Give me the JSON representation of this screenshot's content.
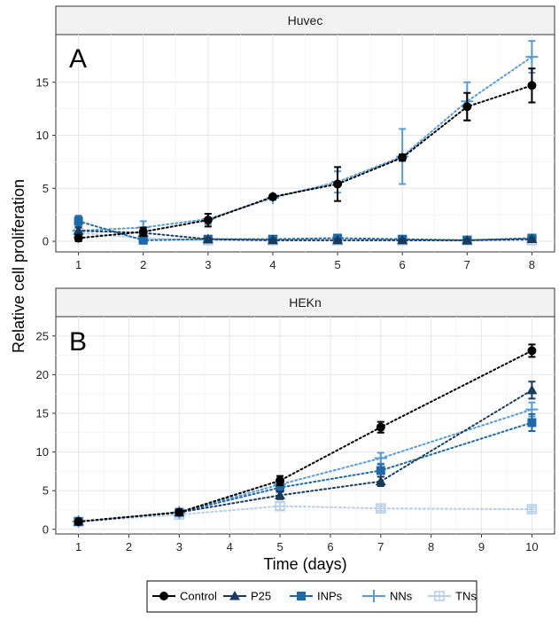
{
  "chart_data": {
    "type": "line",
    "xlabel": "Time (days)",
    "ylabel": "Relative cell proliferation",
    "legend_position": "bottom",
    "grid": true,
    "series_styles": [
      {
        "name": "Control",
        "color": "#000000",
        "marker": "circle"
      },
      {
        "name": "P25",
        "color": "#1a3a5c",
        "marker": "triangle"
      },
      {
        "name": "INPs",
        "color": "#1f6aa5",
        "marker": "square"
      },
      {
        "name": "NNs",
        "color": "#5b9bd5",
        "marker": "cross"
      },
      {
        "name": "TNs",
        "color": "#b8cfe8",
        "marker": "square-cross"
      }
    ],
    "panels": [
      {
        "strip": "Huvec",
        "letter": "A",
        "x": [
          1,
          2,
          3,
          4,
          5,
          6,
          7,
          8
        ],
        "xticks": [
          1,
          2,
          3,
          4,
          5,
          6,
          7,
          8
        ],
        "xlim": [
          0.65,
          8.35
        ],
        "yticks": [
          0,
          5,
          10,
          15
        ],
        "ylim": [
          -1,
          19.5
        ],
        "series": [
          {
            "name": "Control",
            "values": [
              0.3,
              0.9,
              2.0,
              4.2,
              5.4,
              7.9,
              12.7,
              14.7
            ],
            "err": [
              0.3,
              0.4,
              0.6,
              0.2,
              1.6,
              0.3,
              1.3,
              1.6
            ]
          },
          {
            "name": "P25",
            "values": [
              1.0,
              0.8,
              0.2,
              0.1,
              0.1,
              0.1,
              0.1,
              0.2
            ],
            "err": [
              0.3,
              0.2,
              0.1,
              0.1,
              0.1,
              0.1,
              0.1,
              0.1
            ]
          },
          {
            "name": "INPs",
            "values": [
              1.9,
              0.1,
              0.2,
              0.2,
              0.3,
              0.2,
              0.1,
              0.3
            ],
            "err": [
              0.5,
              0.2,
              0.1,
              0.1,
              0.1,
              0.1,
              0.1,
              0.1
            ]
          },
          {
            "name": "NNs",
            "values": [
              1.0,
              1.3,
              2.1,
              4.1,
              5.6,
              8.0,
              13.2,
              17.4
            ],
            "err": [
              0.3,
              0.6,
              0.5,
              0.2,
              1.0,
              2.6,
              1.8,
              1.5
            ]
          },
          {
            "name": "TNs",
            "values": [
              0.8,
              0.3,
              0.1,
              0.1,
              0.1,
              0.1,
              0.1,
              0.1
            ],
            "err": [
              0.2,
              0.1,
              0.1,
              0.1,
              0.1,
              0.1,
              0.1,
              0.1
            ]
          }
        ],
        "annotations": [
          {
            "text": "*",
            "x": 8.45,
            "y": 0.3
          }
        ]
      },
      {
        "strip": "HEKn",
        "letter": "B",
        "x": [
          1,
          3,
          5,
          7,
          10
        ],
        "xticks": [
          1,
          2,
          3,
          4,
          5,
          6,
          7,
          8,
          9,
          10
        ],
        "xlim": [
          0.55,
          10.45
        ],
        "yticks": [
          0,
          5,
          10,
          15,
          20,
          25
        ],
        "ylim": [
          -0.6,
          27.5
        ],
        "series": [
          {
            "name": "Control",
            "values": [
              1.0,
              2.2,
              6.3,
              13.2,
              23.1
            ],
            "err": [
              0.1,
              0.2,
              0.6,
              0.7,
              0.8
            ]
          },
          {
            "name": "P25",
            "values": [
              1.0,
              2.2,
              4.4,
              6.2,
              18.0
            ],
            "err": [
              0.1,
              0.2,
              0.5,
              0.6,
              1.1
            ]
          },
          {
            "name": "INPs",
            "values": [
              1.0,
              2.2,
              5.4,
              7.6,
              13.8
            ],
            "err": [
              0.1,
              0.2,
              0.6,
              0.8,
              1.1
            ]
          },
          {
            "name": "NNs",
            "values": [
              1.0,
              2.2,
              5.8,
              9.2,
              15.5
            ],
            "err": [
              0.1,
              0.2,
              0.6,
              0.7,
              0.9
            ]
          },
          {
            "name": "TNs",
            "values": [
              1.0,
              1.9,
              3.0,
              2.7,
              2.6
            ],
            "err": [
              0.1,
              0.3,
              0.5,
              0.3,
              0.3
            ]
          }
        ],
        "annotations": [
          {
            "text": "(*)",
            "x": 10.6,
            "y": 19.0
          },
          {
            "text": "*",
            "x": 10.6,
            "y": 15.3
          },
          {
            "text": "*",
            "x": 10.6,
            "y": 12.9
          },
          {
            "text": "*",
            "x": 10.6,
            "y": 2.2
          }
        ]
      }
    ],
    "annotation_color": "#e8282b"
  }
}
